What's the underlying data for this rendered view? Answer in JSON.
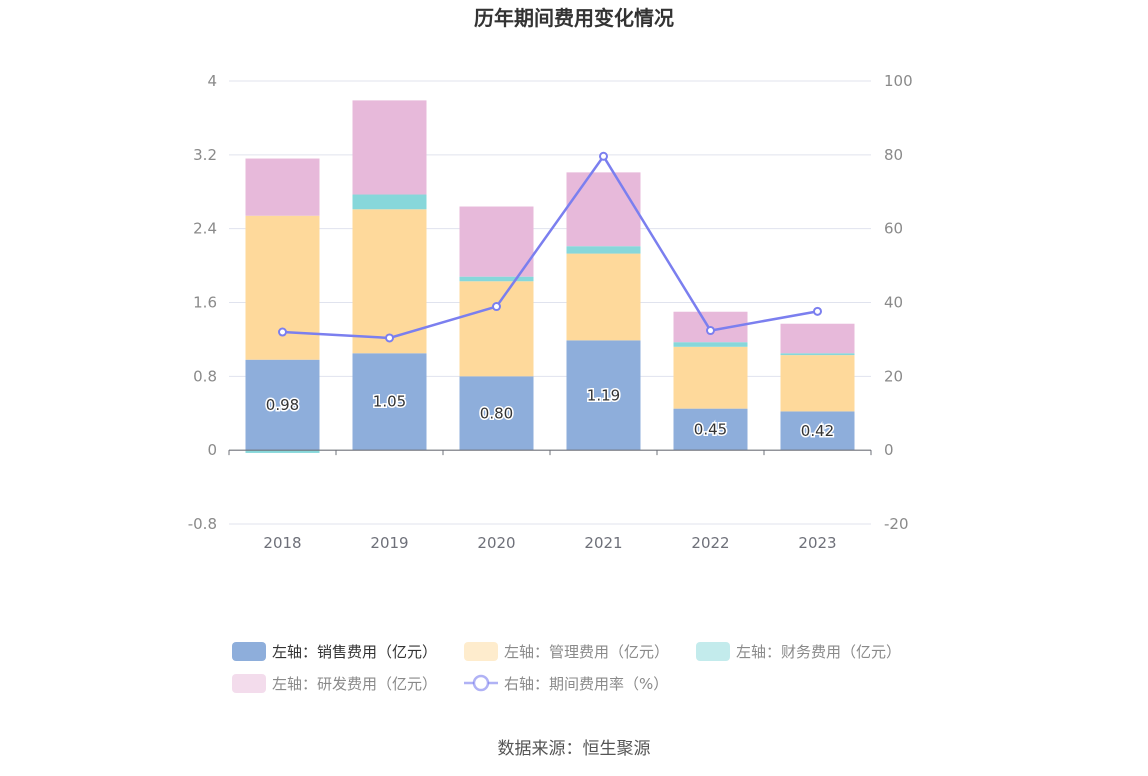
{
  "chart_data": {
    "type": "bar",
    "title": "历年期间费用变化情况",
    "categories": [
      "2018",
      "2019",
      "2020",
      "2021",
      "2022",
      "2023"
    ],
    "stacked": true,
    "left_axis": {
      "ylim": [
        -0.8,
        4
      ],
      "ticks": [
        "-0.8",
        "0",
        "0.8",
        "1.6",
        "2.4",
        "3.2",
        "4"
      ]
    },
    "right_axis": {
      "ylim": [
        -20,
        100
      ],
      "ticks": [
        "-20",
        "0",
        "20",
        "40",
        "60",
        "80",
        "100"
      ]
    },
    "series": [
      {
        "name": "左轴：销售费用（亿元）",
        "axis": "left",
        "type": "bar",
        "color": "#8eaedb",
        "values": [
          0.98,
          1.05,
          0.8,
          1.19,
          0.45,
          0.42
        ],
        "labels": [
          "0.98",
          "1.05",
          "0.80",
          "1.19",
          "0.45",
          "0.42"
        ]
      },
      {
        "name": "左轴：管理费用（亿元）",
        "axis": "left",
        "type": "bar",
        "color": "#fed99b",
        "values": [
          1.56,
          1.56,
          1.03,
          0.94,
          0.67,
          0.61
        ]
      },
      {
        "name": "左轴：财务费用（亿元）",
        "axis": "left",
        "type": "bar",
        "color": "#87d7da",
        "values": [
          -0.03,
          0.16,
          0.05,
          0.08,
          0.05,
          0.02
        ]
      },
      {
        "name": "左轴：研发费用（亿元）",
        "axis": "left",
        "type": "bar",
        "color": "#e7b9da",
        "values": [
          0.62,
          1.02,
          0.76,
          0.8,
          0.33,
          0.32
        ]
      },
      {
        "name": "右轴：期间费用率（%）",
        "axis": "right",
        "type": "line",
        "color": "#7b7fef",
        "values": [
          32.0,
          30.4,
          38.9,
          79.6,
          32.4,
          37.6
        ]
      }
    ],
    "grid": true,
    "legend_position": "bottom"
  },
  "source_text": "数据来源：恒生聚源"
}
